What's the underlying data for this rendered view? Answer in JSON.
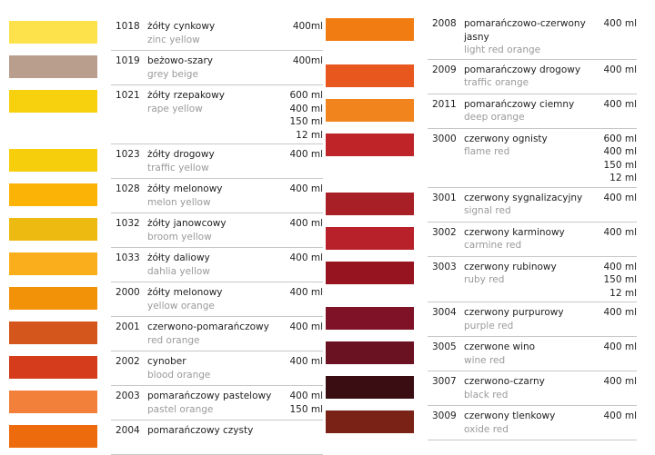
{
  "left": [
    {
      "code": "1018",
      "name": "żółty cynkowy",
      "name_en": "zinc yellow",
      "sizes": [
        "400ml"
      ],
      "color": "#fde24b"
    },
    {
      "code": "1019",
      "name": "beżowo-szary",
      "name_en": "grey beige",
      "sizes": [
        "400ml"
      ],
      "color": "#b99e8e"
    },
    {
      "code": "1021",
      "name": "żółty rzepakowy",
      "name_en": "rape yellow",
      "sizes": [
        "600 ml",
        "400 ml",
        "150 ml",
        "12 ml"
      ],
      "color": "#f7d10d"
    },
    {
      "code": "1023",
      "name": "żółty drogowy",
      "name_en": "traffic yellow",
      "sizes": [
        "400 ml"
      ],
      "color": "#f6ce0b"
    },
    {
      "code": "1028",
      "name": "żółty melonowy",
      "name_en": "melon yellow",
      "sizes": [
        "400 ml"
      ],
      "color": "#fbb305"
    },
    {
      "code": "1032",
      "name": "żółty janowcowy",
      "name_en": "broom yellow",
      "sizes": [
        "400 ml"
      ],
      "color": "#ecba10"
    },
    {
      "code": "1033",
      "name": "żółty daliowy",
      "name_en": "dahlia yellow",
      "sizes": [
        "400 ml"
      ],
      "color": "#fbae1b"
    },
    {
      "code": "2000",
      "name": "żółty melonowy",
      "name_en": "yellow orange",
      "sizes": [
        "400 ml"
      ],
      "color": "#f29209"
    },
    {
      "code": "2001",
      "name": "czerwono-pomarańczowy",
      "name_en": "red orange",
      "sizes": [
        "400 ml"
      ],
      "color": "#d4561d"
    },
    {
      "code": "2002",
      "name": "cynober",
      "name_en": "blood orange",
      "sizes": [
        "400 ml"
      ],
      "color": "#d43c1c"
    },
    {
      "code": "2003",
      "name": "pomarańczowy pastelowy",
      "name_en": "pastel orange",
      "sizes": [
        "400 ml",
        "150 ml"
      ],
      "color": "#f2803a"
    },
    {
      "code": "2004",
      "name": "pomarańczowy czysty",
      "color": "#ee6b0d"
    }
  ],
  "right": [
    {
      "code": "2008",
      "name": "pomarańczowo-czerwony jasny",
      "name_en": "light red orange",
      "sizes": [
        "400 ml"
      ],
      "color": "#f17c12"
    },
    {
      "code": "2009",
      "name": "pomarańczowy drogowy",
      "name_en": "traffic orange",
      "sizes": [
        "400 ml"
      ],
      "color": "#e8571d"
    },
    {
      "code": "2011",
      "name": "pomarańczowy ciemny",
      "name_en": "deep orange",
      "sizes": [
        "400 ml"
      ],
      "color": "#f1841c"
    },
    {
      "code": "3000",
      "name": "czerwony ognisty",
      "name_en": "flame red",
      "sizes": [
        "600 ml",
        "400 ml",
        "150 ml",
        "12 ml"
      ],
      "color": "#be2428"
    },
    {
      "code": "3001",
      "name": "czerwony sygnalizacyjny",
      "name_en": "signal red",
      "sizes": [
        "400 ml"
      ],
      "color": "#a81f26"
    },
    {
      "code": "3002",
      "name": "czerwony karminowy",
      "name_en": "carmine red",
      "sizes": [
        "400 ml"
      ],
      "color": "#b82129"
    },
    {
      "code": "3003",
      "name": "czerwony rubinowy",
      "name_en": "ruby red",
      "sizes": [
        "400 ml",
        "150 ml",
        "12 ml"
      ],
      "color": "#961420"
    },
    {
      "code": "3004",
      "name": "czerwony purpurowy",
      "name_en": "purple red",
      "sizes": [
        "400 ml"
      ],
      "color": "#7f1227"
    },
    {
      "code": "3005",
      "name": "czerwone wino",
      "name_en": "wine red",
      "sizes": [
        "400 ml"
      ],
      "color": "#6a1122"
    },
    {
      "code": "3007",
      "name": "czerwono-czarny",
      "name_en": "black red",
      "sizes": [
        "400 ml"
      ],
      "color": "#3a0d13"
    },
    {
      "code": "3009",
      "name": "czerwony tlenkowy",
      "name_en": "oxide red",
      "sizes": [
        "400 ml"
      ],
      "color": "#7a2215"
    }
  ]
}
